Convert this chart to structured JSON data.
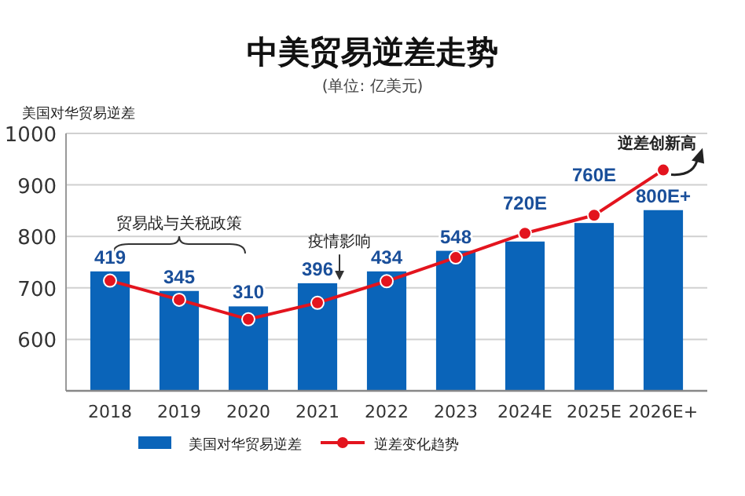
{
  "chart_data": {
    "type": "bar",
    "title": "中美贸易逆差走势",
    "subtitle": "(单位: 亿美元)",
    "ylabel": "美国对华贸易逆差",
    "categories": [
      "2018",
      "2019",
      "2020",
      "2021",
      "2022",
      "2023",
      "2024E",
      "2025E",
      "2026E+"
    ],
    "series": [
      {
        "name": "美国对华贸易逆差",
        "color": "#0a64b9",
        "values": [
          732,
          694,
          664,
          709,
          732,
          772,
          790,
          826,
          851
        ]
      },
      {
        "name": "逆差变化趋势",
        "type": "line",
        "color": "#e3141e",
        "marker": "circle",
        "line_style": "solid",
        "values": [
          714,
          677,
          639,
          671,
          713,
          759,
          806,
          841,
          929
        ]
      }
    ],
    "ylim": [
      500,
      1000
    ],
    "yticks": [
      600,
      700,
      800,
      900,
      1000
    ],
    "grid": "y",
    "legend": "bottom",
    "annotations": [
      "贸易战与关税政策",
      "疫情影响",
      "逆差创新高",
      {
        "text": "419",
        "x": "2018",
        "y": 732
      },
      {
        "text": "345",
        "x": "2019",
        "y": 694
      },
      {
        "text": "310",
        "x": "2020",
        "y": 664
      },
      {
        "text": "396",
        "x": "2021",
        "y": 709
      },
      {
        "text": "434",
        "x": "2022",
        "y": 732
      },
      {
        "text": "548",
        "x": "2023",
        "y": 772
      },
      {
        "text": "720E",
        "x": "2024E",
        "y": 790
      },
      {
        "text": "760E",
        "x": "2025E",
        "y": 826
      },
      {
        "text": "800E+",
        "x": "2026E+",
        "y": 851
      }
    ]
  }
}
